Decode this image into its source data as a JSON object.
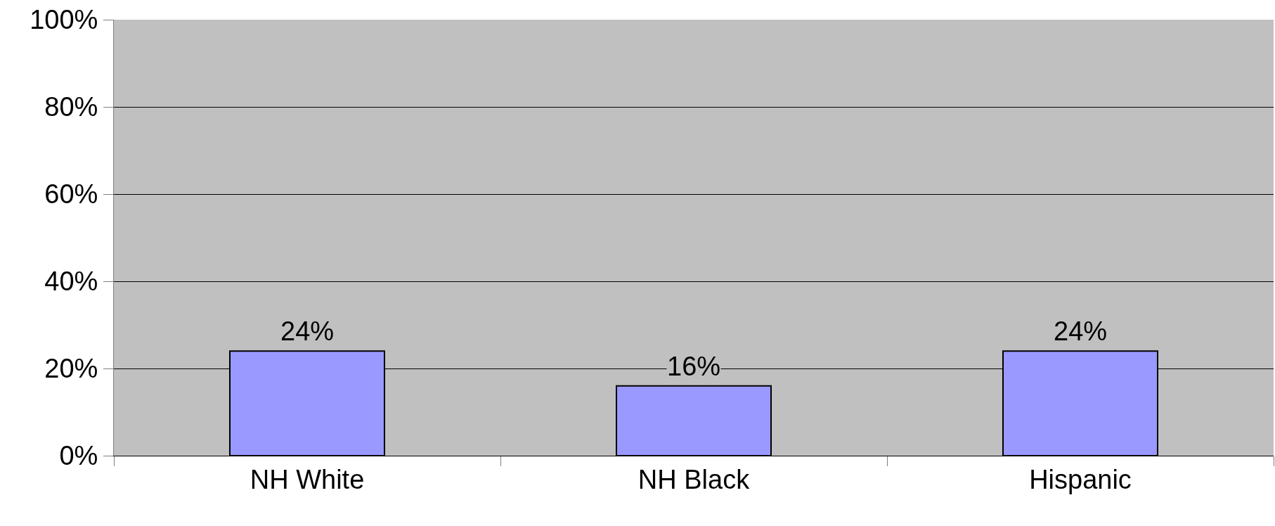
{
  "chart_data": {
    "type": "bar",
    "categories": [
      "NH White",
      "NH Black",
      "Hispanic"
    ],
    "series": [
      {
        "color": "#9999ff",
        "values": [
          24,
          16,
          24
        ],
        "value_labels": [
          "24%",
          "16%",
          "24%"
        ]
      }
    ],
    "ylim": [
      0,
      100
    ],
    "yticks": [
      {
        "value": 0,
        "label": "0%"
      },
      {
        "value": 20,
        "label": "20%"
      },
      {
        "value": 40,
        "label": "40%"
      },
      {
        "value": 60,
        "label": "60%"
      },
      {
        "value": 80,
        "label": "80%"
      },
      {
        "value": 100,
        "label": "100%"
      }
    ],
    "grid": "y",
    "legend": false
  }
}
